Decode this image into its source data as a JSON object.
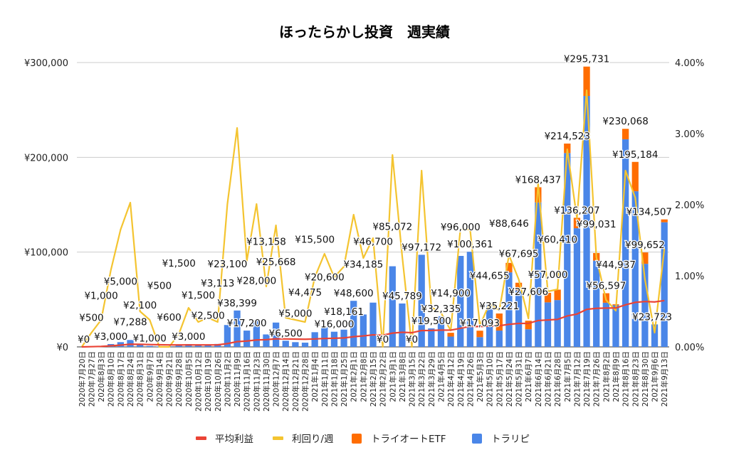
{
  "chart_data": {
    "type": "bar",
    "title": "ほったらかし投資　週実績",
    "xlabel": "",
    "ylabel": "",
    "ylim": [
      0,
      300000
    ],
    "y2lim": [
      0,
      4
    ],
    "grid": true,
    "legend_position": "bottom",
    "y_ticks": [
      "¥0",
      "¥100,000",
      "¥200,000",
      "¥300,000"
    ],
    "y2_ticks": [
      "0.00%",
      "1.00%",
      "2.00%",
      "3.00%",
      "4.00%"
    ],
    "categories": [
      "2020年7月20日",
      "2020年7月27日",
      "2020年8月3日",
      "2020年8月10日",
      "2020年8月17日",
      "2020年8月24日",
      "2020年8月31日",
      "2020年9月7日",
      "2020年9月14日",
      "2020年9月21日",
      "2020年9月28日",
      "2020年10月5日",
      "2020年10月12日",
      "2020年10月19日",
      "2020年10月26日",
      "2020年11月2日",
      "2020年11月9日",
      "2020年11月16日",
      "2020年11月23日",
      "2020年11月30日",
      "2020年12月7日",
      "2020年12月14日",
      "2020年12月21日",
      "2020年12月28日",
      "2021年1月4日",
      "2021年1月11日",
      "2021年1月18日",
      "2021年1月25日",
      "2021年2月1日",
      "2021年2月8日",
      "2021年2月15日",
      "2021年2月22日",
      "2021年3月1日",
      "2021年3月8日",
      "2021年3月15日",
      "2021年3月22日",
      "2021年3月29日",
      "2021年4月5日",
      "2021年4月12日",
      "2021年4月19日",
      "2021年4月26日",
      "2021年5月3日",
      "2021年5月10日",
      "2021年5月17日",
      "2021年5月24日",
      "2021年5月31日",
      "2021年6月7日",
      "2021年6月14日",
      "2021年6月21日",
      "2021年6月28日",
      "2021年7月5日",
      "2021年7月12日",
      "2021年7月19日",
      "2021年7月26日",
      "2021年8月2日",
      "2021年8月9日",
      "2021年8月16日",
      "2021年8月23日",
      "2021年8月30日",
      "2021年9月6日",
      "2021年9月13日"
    ],
    "totals": [
      0,
      500,
      1000,
      3000,
      5000,
      7288,
      2100,
      1000,
      500,
      600,
      1500,
      3000,
      1500,
      2500,
      3113,
      23100,
      38399,
      17200,
      28000,
      13158,
      25668,
      6500,
      5000,
      4475,
      15500,
      20600,
      16000,
      18161,
      48600,
      34185,
      46700,
      0,
      85072,
      45789,
      0,
      97172,
      19500,
      32335,
      14900,
      96000,
      100361,
      17093,
      44655,
      35221,
      88646,
      67695,
      27606,
      168437,
      57000,
      60410,
      214523,
      136207,
      295731,
      99031,
      56597,
      44937,
      230068,
      195184,
      99652,
      23723,
      134507
    ],
    "series": [
      {
        "name": "平均利益",
        "kind": "line",
        "axis": "left",
        "color": "#ea4335",
        "values": "cumulative-mean-of-totals"
      },
      {
        "name": "利回り/週",
        "kind": "line",
        "axis": "right",
        "color": "#f4c430",
        "values": [
          0,
          0.2,
          0.38,
          1.08,
          1.65,
          2.03,
          0.5,
          0.38,
          0,
          0,
          0.18,
          0.55,
          0.35,
          0.41,
          0.35,
          2.01,
          3.08,
          1.21,
          2.01,
          0.85,
          1.71,
          0.41,
          0.38,
          0.35,
          0.98,
          1.31,
          0.98,
          1.13,
          1.86,
          1.25,
          1.53,
          0,
          2.7,
          1.28,
          0,
          2.48,
          0.56,
          0.48,
          0.23,
          1.66,
          1.65,
          0.3,
          0.61,
          0.51,
          1.29,
          0.95,
          0.4,
          2.3,
          0.78,
          0.81,
          2.78,
          1.81,
          3.61,
          1.26,
          0.66,
          0.51,
          2.48,
          2.1,
          0.95,
          0.2,
          1.38
        ]
      },
      {
        "name": "トライオートETF",
        "kind": "bar",
        "axis": "left",
        "color": "#ff6d01",
        "values": [
          0,
          0,
          0,
          0,
          0,
          0,
          0,
          0,
          0,
          0,
          0,
          0,
          0,
          0,
          0,
          0,
          0,
          0,
          0,
          0,
          0,
          0,
          0,
          0,
          0,
          0,
          0,
          0,
          0,
          0,
          0,
          0,
          0,
          0,
          0,
          0,
          0,
          0,
          4000,
          0,
          0,
          6800,
          0,
          18000,
          10000,
          8000,
          9000,
          16000,
          10000,
          11000,
          10000,
          11000,
          31000,
          8000,
          10000,
          1000,
          11000,
          31000,
          12000,
          0,
          3000
        ]
      },
      {
        "name": "トラリピ",
        "kind": "bar",
        "axis": "left",
        "color": "#4a86e8",
        "values": "totals-minus-etf"
      }
    ],
    "legend": [
      "平均利益",
      "利回り/週",
      "トライオートETF",
      "トラリピ"
    ]
  }
}
